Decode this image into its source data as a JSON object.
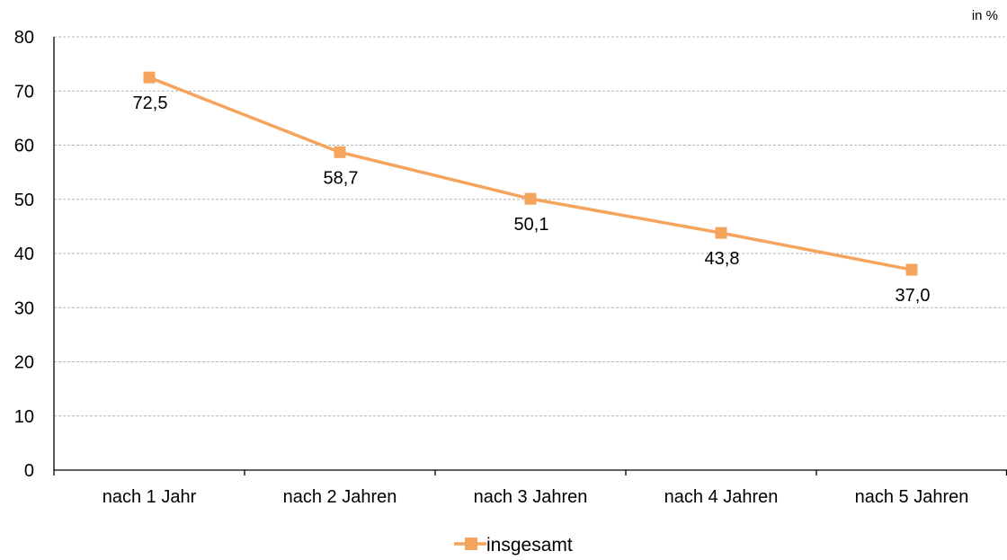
{
  "chart_data": {
    "type": "line",
    "unit_label": "in %",
    "categories": [
      "nach 1 Jahr",
      "nach 2 Jahren",
      "nach 3 Jahren",
      "nach 4 Jahren",
      "nach 5 Jahren"
    ],
    "series": [
      {
        "name": "insgesamt",
        "values": [
          72.5,
          58.7,
          50.1,
          43.8,
          37.0
        ],
        "labels": [
          "72,5",
          "58,7",
          "50,1",
          "43,8",
          "37,0"
        ],
        "color": "#F5A45D",
        "marker": "square"
      }
    ],
    "ylim": [
      0,
      80
    ],
    "yticks": [
      0,
      10,
      20,
      30,
      40,
      50,
      60,
      70,
      80
    ],
    "grid": "horizontal dashed",
    "legend_position": "bottom-center",
    "xlabel": "",
    "ylabel": ""
  }
}
